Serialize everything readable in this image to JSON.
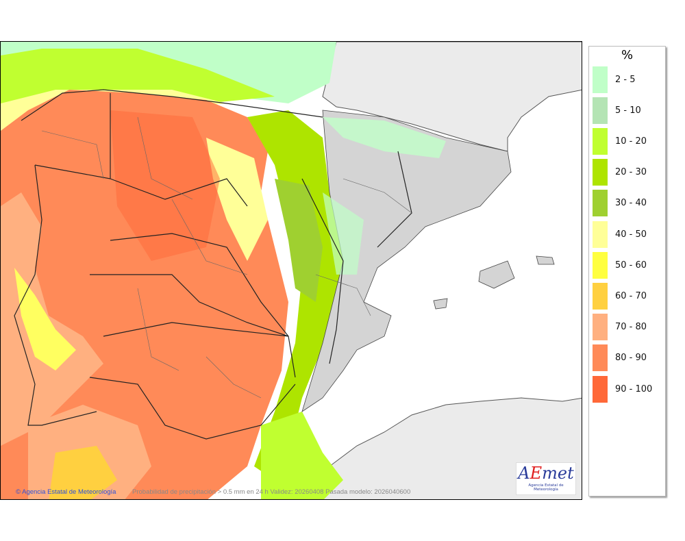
{
  "map": {
    "credit": "Agencia Estatal de Meteorología",
    "copyright_symbol": "©",
    "caption": "Probabilidad de precipitación > 0.5 mm en 24 h Validez: 20260408 Pasada modelo: 2026040600",
    "logo": {
      "text": "AEmet",
      "subtitle": "Agencia Estatal de Meteorología"
    }
  },
  "legend": {
    "unit": "%",
    "items": [
      {
        "label": "2 - 5",
        "color": "#c0ffc8"
      },
      {
        "label": "5 - 10",
        "color": "#b4e4b4"
      },
      {
        "label": "10 - 20",
        "color": "#c0ff30"
      },
      {
        "label": "20 - 30",
        "color": "#aee400"
      },
      {
        "label": "30 - 40",
        "color": "#9fd030"
      },
      {
        "label": "40 - 50",
        "color": "#ffff98"
      },
      {
        "label": "50 - 60",
        "color": "#ffff40"
      },
      {
        "label": "60 - 70",
        "color": "#ffd040"
      },
      {
        "label": "70 - 80",
        "color": "#ffb080"
      },
      {
        "label": "80 - 90",
        "color": "#ff8a58"
      },
      {
        "label": "90 - 100",
        "color": "#ff6838"
      }
    ]
  }
}
